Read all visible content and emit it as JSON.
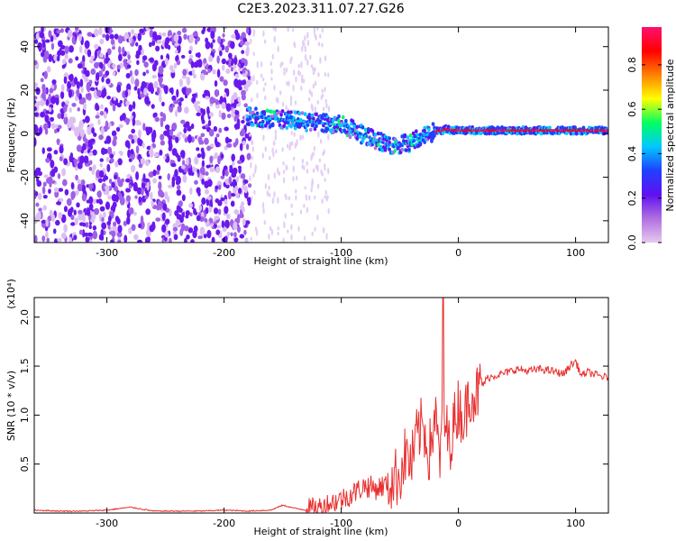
{
  "figure": {
    "title": "C2E3.2023.311.07.27.G26"
  },
  "chart_data": [
    {
      "type": "heatmap",
      "xlabel": "Height of straight line (km)",
      "ylabel": "Frequency (Hz)",
      "xlim": [
        -362,
        128
      ],
      "ylim": [
        -50,
        49
      ],
      "xticks": [
        -300,
        -200,
        -100,
        0,
        100
      ],
      "yticks": [
        -40,
        -20,
        0,
        20,
        40
      ],
      "colorbar": {
        "label": "Normalized spectral amplitude",
        "range": [
          0.0,
          0.97
        ],
        "ticks": [
          0.0,
          0.2,
          0.4,
          0.6,
          0.8
        ],
        "colors": [
          "#ffffff",
          "#e8c8f0",
          "#b070e0",
          "#6010f0",
          "#2040ff",
          "#00c8ff",
          "#00ff60",
          "#ffff00",
          "#ff8000",
          "#ff0000",
          "#ff1070"
        ]
      },
      "noise_region": {
        "x_from": -362,
        "x_to": -178,
        "amplitude": 0.25
      },
      "faint_region": {
        "x_from": -178,
        "x_to": -110,
        "amplitude": 0.08
      },
      "signal_track": [
        {
          "x": -180,
          "y": 8
        },
        {
          "x": -160,
          "y": 7
        },
        {
          "x": -140,
          "y": 6
        },
        {
          "x": -120,
          "y": 5
        },
        {
          "x": -100,
          "y": 4
        },
        {
          "x": -90,
          "y": 2
        },
        {
          "x": -80,
          "y": -1
        },
        {
          "x": -70,
          "y": -3
        },
        {
          "x": -60,
          "y": -5
        },
        {
          "x": -50,
          "y": -5
        },
        {
          "x": -40,
          "y": -4
        },
        {
          "x": -30,
          "y": -1
        },
        {
          "x": -20,
          "y": 1
        },
        {
          "x": -10,
          "y": 2
        },
        {
          "x": 0,
          "y": 1.5
        },
        {
          "x": 50,
          "y": 1.5
        },
        {
          "x": 100,
          "y": 1.5
        },
        {
          "x": 128,
          "y": 1.5
        }
      ]
    },
    {
      "type": "line",
      "xlabel": "Height of straight line (km)",
      "ylabel": "SNR (10 * v/v)",
      "y_multiplier_label": "(x10⁴)",
      "xlim": [
        -362,
        128
      ],
      "ylim": [
        0,
        2.2
      ],
      "xticks": [
        -300,
        -200,
        -100,
        0,
        100
      ],
      "yticks": [
        0.5,
        1.0,
        1.5,
        2.0
      ],
      "ytick_labels": [
        "0.5",
        "1.0",
        "1.5",
        "2.0"
      ],
      "line_color": "#e83030",
      "series": [
        {
          "x": [
            -362,
            -340,
            -320,
            -300,
            -280,
            -260,
            -240,
            -220,
            -200,
            -180,
            -160,
            -150,
            -140,
            -130,
            -120,
            -110,
            -100,
            -90,
            -80,
            -70,
            -60,
            -50,
            -45,
            -40,
            -35,
            -30,
            -25,
            -20,
            -16,
            -12,
            -8,
            -4,
            0,
            5,
            10,
            15,
            20,
            25,
            30,
            40,
            50,
            60,
            70,
            80,
            90,
            95,
            100,
            105,
            110,
            120,
            128
          ],
          "y": [
            0.03,
            0.02,
            0.02,
            0.03,
            0.06,
            0.02,
            0.02,
            0.02,
            0.03,
            0.02,
            0.03,
            0.08,
            0.05,
            0.03,
            0.05,
            0.1,
            0.14,
            0.2,
            0.28,
            0.25,
            0.3,
            0.4,
            0.6,
            0.5,
            0.8,
            0.9,
            0.6,
            1.0,
            0.55,
            0.95,
            0.7,
            0.9,
            1.1,
            0.95,
            1.25,
            1.2,
            1.3,
            1.38,
            1.4,
            1.43,
            1.47,
            1.45,
            1.47,
            1.45,
            1.42,
            1.5,
            1.55,
            1.4,
            1.44,
            1.4,
            1.38
          ]
        }
      ]
    }
  ]
}
